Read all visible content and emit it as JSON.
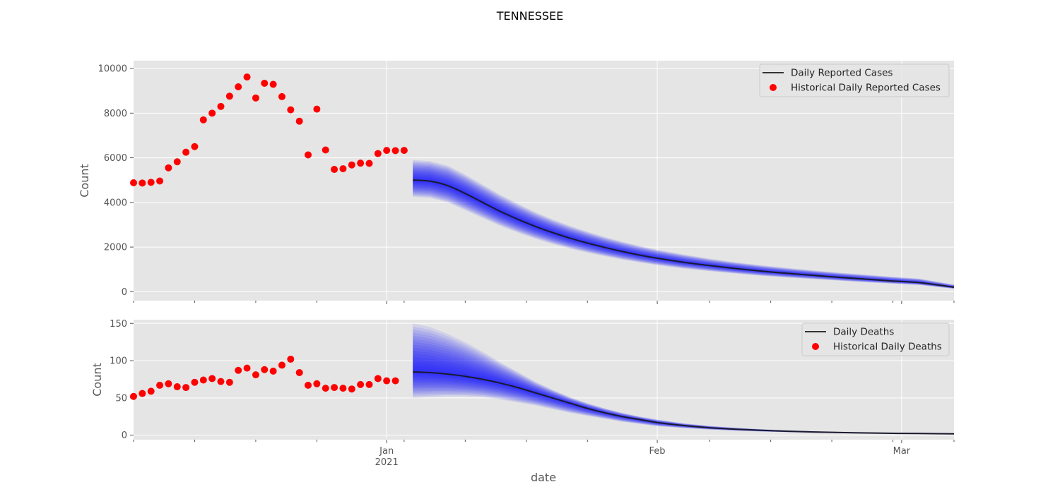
{
  "figure": {
    "suptitle": "TENNESSEE",
    "xlabel": "date"
  },
  "colors": {
    "panel_bg": "#e5e5e5",
    "grid": "#ffffff",
    "historical": "#ff0000",
    "forecast_line": "#1a1a2e",
    "band": "#0000ff"
  },
  "chart_data": [
    {
      "type": "scatter",
      "title": "",
      "xlabel": "date",
      "ylabel": "Count",
      "grid": true,
      "legend_position": "top-right",
      "x_axis": {
        "type": "date",
        "range": [
          "2020-12-03",
          "2021-03-07"
        ],
        "tick_labels": [
          {
            "date": "2021-01-01",
            "label": "Jan",
            "sublabel": "2021"
          },
          {
            "date": "2021-02-01",
            "label": "Feb",
            "sublabel": ""
          },
          {
            "date": "2021-03-01",
            "label": "Mar",
            "sublabel": ""
          }
        ],
        "minor_ticks": [
          "2020-12-03",
          "2020-12-10",
          "2020-12-17",
          "2020-12-24",
          "2021-01-03",
          "2021-01-10",
          "2021-01-17",
          "2021-01-24",
          "2021-02-07",
          "2021-02-14",
          "2021-02-21",
          "2021-02-28",
          "2021-03-07"
        ]
      },
      "ylim": [
        -400,
        10350
      ],
      "yticks": [
        0,
        2000,
        4000,
        6000,
        8000,
        10000
      ],
      "series": [
        {
          "name": "Historical Daily Reported Cases",
          "kind": "scatter",
          "x": [
            "2020-12-03",
            "2020-12-04",
            "2020-12-05",
            "2020-12-06",
            "2020-12-07",
            "2020-12-08",
            "2020-12-09",
            "2020-12-10",
            "2020-12-11",
            "2020-12-12",
            "2020-12-13",
            "2020-12-14",
            "2020-12-15",
            "2020-12-16",
            "2020-12-17",
            "2020-12-18",
            "2020-12-19",
            "2020-12-20",
            "2020-12-21",
            "2020-12-22",
            "2020-12-23",
            "2020-12-24",
            "2020-12-25",
            "2020-12-26",
            "2020-12-27",
            "2020-12-28",
            "2020-12-29",
            "2020-12-30",
            "2020-12-31",
            "2021-01-01",
            "2021-01-02",
            "2021-01-03"
          ],
          "values": [
            4880,
            4870,
            4900,
            4960,
            5550,
            5820,
            6250,
            6500,
            7700,
            8000,
            8300,
            8760,
            9180,
            9620,
            8680,
            9340,
            9290,
            8740,
            8150,
            7640,
            6130,
            8180,
            6350,
            5480,
            5510,
            5680,
            5760,
            5750,
            6190,
            6330,
            6320,
            6330
          ]
        },
        {
          "name": "Daily Reported Cases",
          "kind": "line",
          "start": "2021-01-04",
          "end": "2021-03-07",
          "x": [
            "2021-01-04",
            "2021-01-06",
            "2021-01-08",
            "2021-01-10",
            "2021-01-12",
            "2021-01-14",
            "2021-01-16",
            "2021-01-18",
            "2021-01-20",
            "2021-01-22",
            "2021-01-24",
            "2021-01-26",
            "2021-01-28",
            "2021-01-30",
            "2021-02-01",
            "2021-02-04",
            "2021-02-07",
            "2021-02-10",
            "2021-02-13",
            "2021-02-16",
            "2021-02-19",
            "2021-02-22",
            "2021-02-25",
            "2021-02-28",
            "2021-03-03",
            "2021-03-07"
          ],
          "values": [
            5000,
            4950,
            4750,
            4400,
            4000,
            3600,
            3250,
            2930,
            2650,
            2400,
            2180,
            1980,
            1800,
            1640,
            1500,
            1320,
            1170,
            1040,
            920,
            820,
            730,
            640,
            560,
            480,
            410,
            200
          ],
          "band_lower": [
            4250,
            4200,
            4000,
            3650,
            3300,
            2950,
            2650,
            2380,
            2140,
            1930,
            1750,
            1590,
            1440,
            1310,
            1190,
            1040,
            920,
            810,
            710,
            630,
            560,
            490,
            420,
            360,
            300,
            130
          ],
          "band_upper": [
            5900,
            5850,
            5650,
            5250,
            4800,
            4350,
            3950,
            3570,
            3240,
            2950,
            2690,
            2450,
            2240,
            2050,
            1880,
            1670,
            1480,
            1320,
            1180,
            1060,
            950,
            850,
            760,
            670,
            590,
            320
          ]
        }
      ]
    },
    {
      "type": "scatter",
      "title": "",
      "xlabel": "date",
      "ylabel": "Count",
      "grid": true,
      "legend_position": "top-right",
      "ylim": [
        -6,
        155
      ],
      "yticks": [
        0,
        50,
        100,
        150
      ],
      "series": [
        {
          "name": "Historical Daily Deaths",
          "kind": "scatter",
          "x": [
            "2020-12-03",
            "2020-12-04",
            "2020-12-05",
            "2020-12-06",
            "2020-12-07",
            "2020-12-08",
            "2020-12-09",
            "2020-12-10",
            "2020-12-11",
            "2020-12-12",
            "2020-12-13",
            "2020-12-14",
            "2020-12-15",
            "2020-12-16",
            "2020-12-17",
            "2020-12-18",
            "2020-12-19",
            "2020-12-20",
            "2020-12-21",
            "2020-12-22",
            "2020-12-23",
            "2020-12-24",
            "2020-12-25",
            "2020-12-26",
            "2020-12-27",
            "2020-12-28",
            "2020-12-29",
            "2020-12-30",
            "2020-12-31",
            "2021-01-01",
            "2021-01-02"
          ],
          "values": [
            52,
            56,
            59,
            67,
            69,
            65,
            64,
            71,
            74,
            76,
            72,
            71,
            87,
            90,
            81,
            88,
            86,
            94,
            102,
            84,
            67,
            69,
            63,
            64,
            63,
            62,
            68,
            68,
            76,
            73,
            73
          ]
        },
        {
          "name": "Daily Deaths",
          "kind": "line",
          "x": [
            "2021-01-04",
            "2021-01-06",
            "2021-01-08",
            "2021-01-10",
            "2021-01-12",
            "2021-01-14",
            "2021-01-16",
            "2021-01-18",
            "2021-01-20",
            "2021-01-22",
            "2021-01-24",
            "2021-01-26",
            "2021-01-28",
            "2021-01-30",
            "2021-02-01",
            "2021-02-04",
            "2021-02-07",
            "2021-02-10",
            "2021-02-13",
            "2021-02-16",
            "2021-02-19",
            "2021-02-22",
            "2021-02-25",
            "2021-02-28",
            "2021-03-03",
            "2021-03-07"
          ],
          "values": [
            85,
            84,
            82,
            79,
            75,
            70,
            64,
            57,
            50,
            43,
            36,
            30,
            25,
            21,
            17,
            13,
            10,
            8,
            6.5,
            5.3,
            4.3,
            3.6,
            3.0,
            2.5,
            2.2,
            1.9
          ],
          "band_lower": [
            50,
            51,
            52,
            52,
            51,
            48,
            44,
            40,
            35,
            30,
            26,
            22,
            18,
            15,
            12,
            9.5,
            7.5,
            6,
            4.8,
            4,
            3.3,
            2.8,
            2.3,
            2.0,
            1.8,
            1.5
          ],
          "band_upper": [
            150,
            145,
            136,
            125,
            112,
            98,
            85,
            72,
            61,
            51,
            43,
            36,
            30,
            25,
            21,
            16,
            12.5,
            10,
            8,
            6.5,
            5.3,
            4.4,
            3.7,
            3.1,
            2.7,
            2.3
          ]
        }
      ]
    }
  ]
}
